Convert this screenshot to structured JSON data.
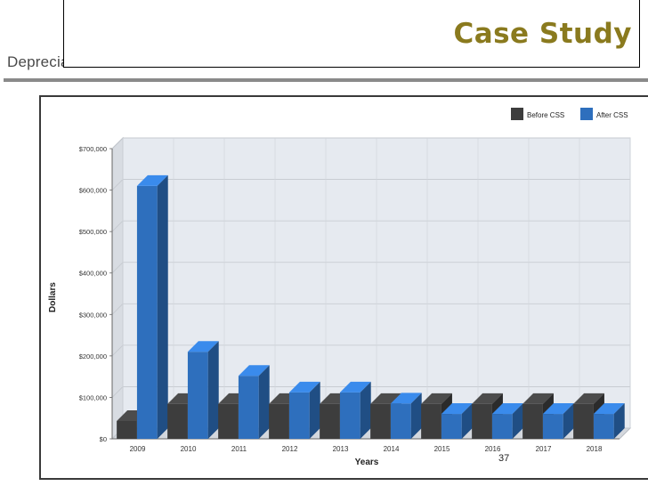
{
  "slide": {
    "title": "Case Study",
    "subtitle": "Depreciation Before & After CSS",
    "page_number": "37"
  },
  "colors": {
    "before": "#3d3d3d",
    "after": "#2e6fbd",
    "title": "#8a7a1e",
    "plot_bg": "#e6eaf0"
  },
  "chart_data": {
    "type": "bar",
    "title": "",
    "xlabel": "Years",
    "ylabel": "Dollars",
    "categories": [
      "2009",
      "2010",
      "2011",
      "2012",
      "2013",
      "2014",
      "2015",
      "2016",
      "2017",
      "2018"
    ],
    "series": [
      {
        "name": "Before CSS",
        "values": [
          43000,
          84000,
          84000,
          84000,
          84000,
          84000,
          84000,
          84000,
          84000,
          84000
        ]
      },
      {
        "name": "After CSS",
        "values": [
          610000,
          210000,
          152000,
          112000,
          112000,
          85000,
          60000,
          60000,
          60000,
          60000
        ]
      }
    ],
    "ylim": [
      0,
      700000
    ],
    "yticks": [
      0,
      100000,
      200000,
      300000,
      400000,
      500000,
      600000,
      700000
    ],
    "ytick_labels": [
      "$0",
      "$100,000",
      "$200,000",
      "$300,000",
      "$400,000",
      "$500,000",
      "$600,000",
      "$700,000"
    ],
    "grid": true,
    "legend_position": "top-right",
    "bar_style": "3d"
  }
}
